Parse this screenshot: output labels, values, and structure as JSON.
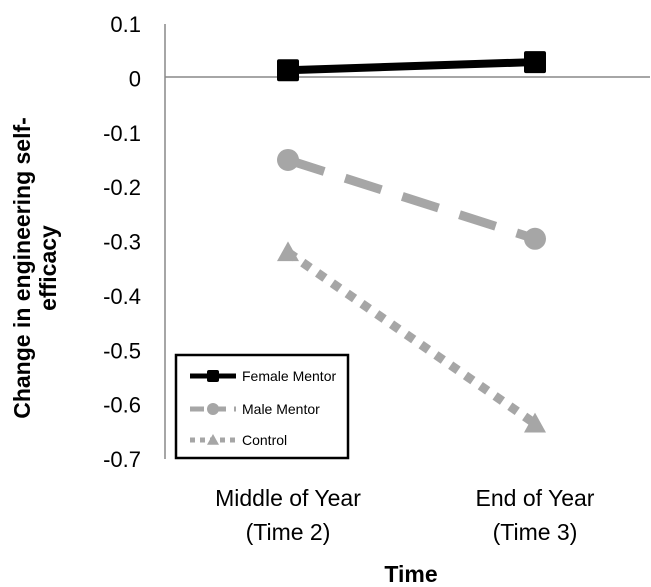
{
  "chart_data": {
    "type": "line",
    "title": "",
    "xlabel": "Time",
    "ylabel_lines": [
      "Change in engineering self-",
      "efficacy"
    ],
    "categories": [
      [
        "Middle of Year",
        "(Time 2)"
      ],
      [
        "End of Year",
        "(Time 3)"
      ]
    ],
    "ylim": [
      -0.7,
      0.1
    ],
    "yticks": [
      "0.1",
      "0",
      "-0.1",
      "-0.2",
      "-0.3",
      "-0.4",
      "-0.5",
      "-0.6",
      "-0.7"
    ],
    "ytick_values": [
      0.1,
      0,
      -0.1,
      -0.2,
      -0.3,
      -0.4,
      -0.5,
      -0.6,
      -0.7
    ],
    "grid": false,
    "legend_position": "bottom-left",
    "series": [
      {
        "name": "Female Mentor",
        "values": [
          0.015,
          0.03
        ],
        "color": "#000000",
        "line_style": "solid",
        "marker": "square"
      },
      {
        "name": "Male Mentor",
        "values": [
          -0.15,
          -0.295
        ],
        "color": "#a6a6a6",
        "line_style": "dashed",
        "marker": "circle"
      },
      {
        "name": "Control",
        "values": [
          -0.32,
          -0.635
        ],
        "color": "#a6a6a6",
        "line_style": "dotted",
        "marker": "triangle"
      }
    ]
  }
}
